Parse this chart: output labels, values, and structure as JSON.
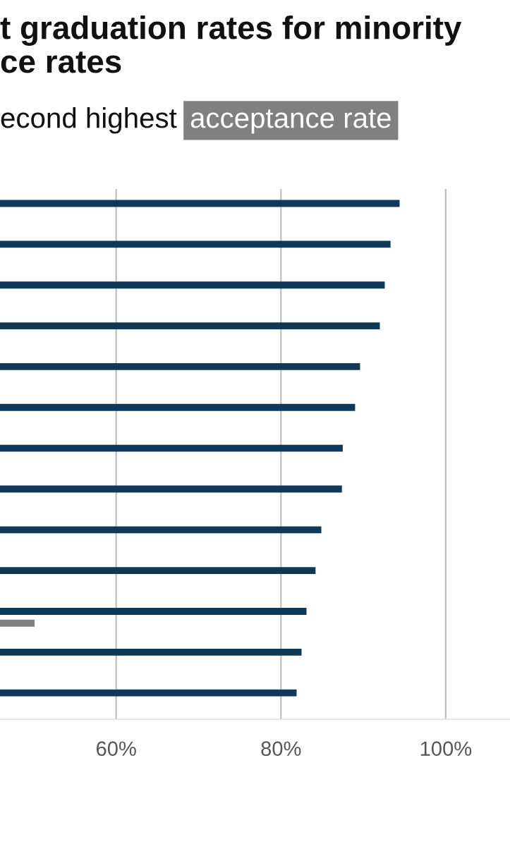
{
  "chart_data": {
    "type": "bar",
    "orientation": "horizontal",
    "title": "t graduation rates for minority\nce rates",
    "subtitle": "econd highest",
    "categories": [
      null,
      null,
      null,
      null,
      null,
      null,
      null,
      null,
      null,
      null,
      null,
      null,
      null
    ],
    "series": [
      {
        "color": "#0d3a5a",
        "values": [
          94.4,
          93.3,
          92.6,
          92.0,
          89.6,
          89.0,
          87.5,
          87.4,
          84.9,
          84.2,
          83.1,
          82.5,
          81.9
        ]
      },
      {
        "name": "acceptance rate",
        "color": "#808080",
        "values": [
          null,
          null,
          null,
          null,
          null,
          null,
          null,
          null,
          null,
          null,
          50.1,
          null,
          null
        ]
      }
    ],
    "xlim": [
      45.9,
      107.8
    ],
    "xticks": [
      {
        "value": 60,
        "label": "60%"
      },
      {
        "value": 80,
        "label": "80%"
      },
      {
        "value": 100,
        "label": "100%"
      }
    ],
    "grid": "x"
  }
}
